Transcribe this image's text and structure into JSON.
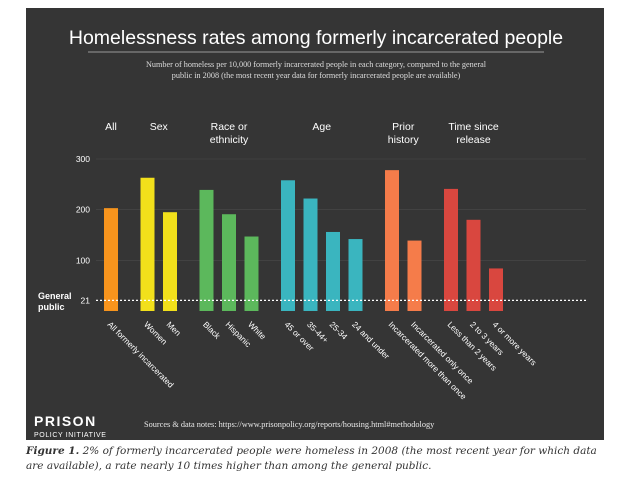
{
  "chart_data": {
    "type": "bar",
    "title": "Homelessness rates among formerly incarcerated people",
    "subtitle_lines": [
      "Number of homeless per 10,000 formerly incarcerated people in each category, compared to the general",
      "public in 2008 (the most recent year data for formerly incarcerated people are available)"
    ],
    "ylim": [
      0,
      300
    ],
    "yticks": [
      100,
      200,
      300
    ],
    "reference_line": {
      "value": 21,
      "tick_label": "21",
      "label_lines": [
        "General",
        "public"
      ]
    },
    "groups": [
      {
        "label_lines": [
          "All"
        ],
        "color": "#f7941d",
        "bars": [
          {
            "label": "All formerly incarcerated",
            "value": 203
          }
        ]
      },
      {
        "label_lines": [
          "Sex"
        ],
        "color": "#f2e01b",
        "bars": [
          {
            "label": "Women",
            "value": 263
          },
          {
            "label": "Men",
            "value": 195
          }
        ]
      },
      {
        "label_lines": [
          "Race or",
          "ethnicity"
        ],
        "color": "#5cb85c",
        "bars": [
          {
            "label": "Black",
            "value": 239
          },
          {
            "label": "Hispanic",
            "value": 191
          },
          {
            "label": "White",
            "value": 147
          }
        ]
      },
      {
        "label_lines": [
          "Age"
        ],
        "color": "#3ab5bf",
        "bars": [
          {
            "label": "45 or over",
            "value": 258
          },
          {
            "label": "35-44+",
            "value": 222
          },
          {
            "label": "25-34",
            "value": 156
          },
          {
            "label": "24 and under",
            "value": 142
          }
        ]
      },
      {
        "label_lines": [
          "Prior",
          "history"
        ],
        "color": "#f57c4a",
        "bars": [
          {
            "label": "Incarcerated more than once",
            "value": 278
          },
          {
            "label": "Incarcerated only once",
            "value": 139
          }
        ]
      },
      {
        "label_lines": [
          "Time since",
          "release"
        ],
        "color": "#d9473f",
        "bars": [
          {
            "label": "Less than 2 years",
            "value": 241
          },
          {
            "label": "2 to 3 years",
            "value": 180
          },
          {
            "label": "4 or more years",
            "value": 84
          }
        ]
      }
    ],
    "source": "Sources & data notes: https://www.prisonpolicy.org/reports/housing.html#methodology"
  },
  "logo": {
    "line1": "PRISON",
    "line2": "POLICY INITIATIVE"
  },
  "caption": {
    "figure_label": "Figure 1.",
    "text": " 2% of formerly incarcerated people were homeless in 2008 (the most recent year for which data are available), a rate nearly 10 times higher than among the general public."
  }
}
